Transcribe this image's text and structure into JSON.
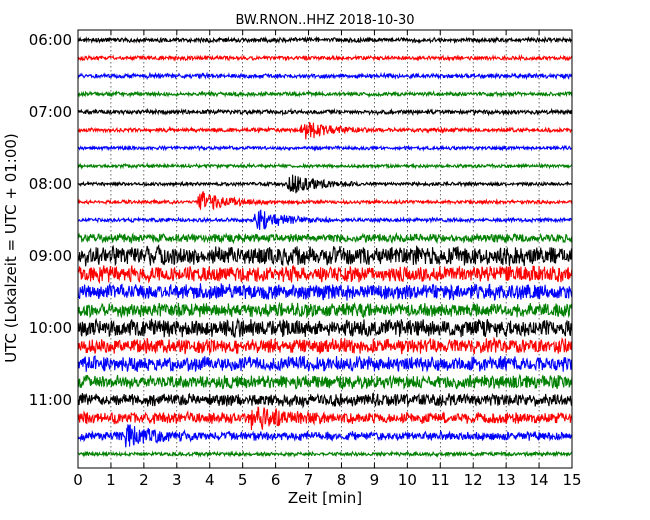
{
  "chart_data": {
    "type": "line",
    "title": "BW.RNON..HHZ 2018-10-30",
    "xlabel": "Zeit  [min]",
    "ylabel": "UTC (Lokalzeit = UTC + 01:00)",
    "xlim": [
      0,
      15
    ],
    "x_ticks": [
      "0",
      "1",
      "2",
      "3",
      "4",
      "5",
      "6",
      "7",
      "8",
      "9",
      "10",
      "11",
      "12",
      "13",
      "14",
      "15"
    ],
    "y_tick_labels": [
      "06:00",
      "07:00",
      "08:00",
      "09:00",
      "10:00",
      "11:00"
    ],
    "grid": true,
    "colors": [
      "#000000",
      "#ff0000",
      "#0000ff",
      "#008000"
    ],
    "traces": [
      {
        "start": "06:00",
        "amplitude": 0.18
      },
      {
        "start": "06:15",
        "amplitude": 0.16
      },
      {
        "start": "06:30",
        "amplitude": 0.18
      },
      {
        "start": "06:45",
        "amplitude": 0.16
      },
      {
        "start": "07:00",
        "amplitude": 0.18
      },
      {
        "start": "07:15",
        "amplitude": 0.16,
        "event_min": 6.9
      },
      {
        "start": "07:30",
        "amplitude": 0.14
      },
      {
        "start": "07:45",
        "amplitude": 0.14
      },
      {
        "start": "08:00",
        "amplitude": 0.14,
        "event_min": 6.5
      },
      {
        "start": "08:15",
        "amplitude": 0.14,
        "event_min": 3.8
      },
      {
        "start": "08:30",
        "amplitude": 0.16,
        "event_min": 5.5
      },
      {
        "start": "08:45",
        "amplitude": 0.35
      },
      {
        "start": "09:00",
        "amplitude": 0.75
      },
      {
        "start": "09:15",
        "amplitude": 0.65
      },
      {
        "start": "09:30",
        "amplitude": 0.65
      },
      {
        "start": "09:45",
        "amplitude": 0.55
      },
      {
        "start": "10:00",
        "amplitude": 0.7
      },
      {
        "start": "10:15",
        "amplitude": 0.6
      },
      {
        "start": "10:30",
        "amplitude": 0.6
      },
      {
        "start": "10:45",
        "amplitude": 0.55
      },
      {
        "start": "11:00",
        "amplitude": 0.5
      },
      {
        "start": "11:15",
        "amplitude": 0.45,
        "event_min": 5.4
      },
      {
        "start": "11:30",
        "amplitude": 0.35,
        "event_min": 1.5
      },
      {
        "start": "11:45",
        "amplitude": 0.15
      }
    ]
  }
}
